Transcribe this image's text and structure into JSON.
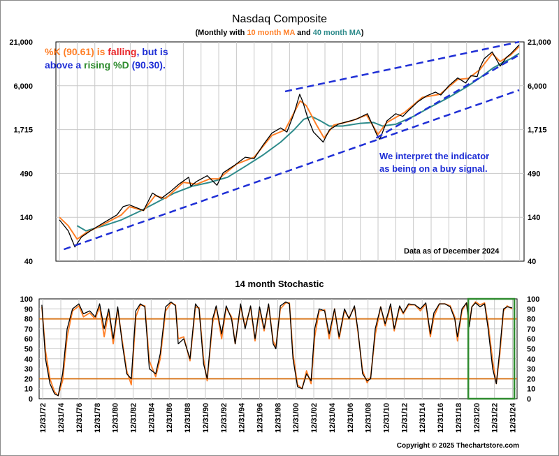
{
  "chart_data": [
    {
      "type": "line",
      "title": "Nasdaq Composite",
      "subtitle": {
        "prefix": "(Monthly with ",
        "ma1": "10 month MA",
        "mid": " and ",
        "ma2": "40 month MA",
        "suffix": ")"
      },
      "y_scale": "log",
      "ylim": [
        40,
        21000
      ],
      "y_ticks": [
        "40",
        "140",
        "490",
        "1,715",
        "6,000",
        "21,000"
      ],
      "y_tick_values": [
        40,
        140,
        490,
        1715,
        6000,
        21000
      ],
      "x_ticks": [
        "12/31/72",
        "12/31/74",
        "12/31/76",
        "12/31/78",
        "12/31/80",
        "12/31/82",
        "12/31/84",
        "12/31/86",
        "12/31/88",
        "12/31/90",
        "12/31/92",
        "12/31/94",
        "12/31/96",
        "12/31/98",
        "12/31/00",
        "12/31/02",
        "12/31/04",
        "12/31/06",
        "12/31/08",
        "12/31/10",
        "12/31/12",
        "12/31/14",
        "12/31/16",
        "12/31/18",
        "12/31/20",
        "12/31/22",
        "12/31/24"
      ],
      "xlim": [
        1972.6,
        2025.5
      ],
      "series": [
        {
          "name": "Nasdaq Composite",
          "color": "#000000",
          "x": [
            1973.0,
            1974.0,
            1974.75,
            1975.5,
            1976.5,
            1978.0,
            1979.5,
            1980.2,
            1980.9,
            1982.5,
            1983.5,
            1984.5,
            1985.5,
            1986.5,
            1987.6,
            1987.85,
            1988.5,
            1989.7,
            1990.8,
            1991.5,
            1992.8,
            1994.0,
            1995.0,
            1996.0,
            1997.0,
            1998.0,
            1998.7,
            1999.5,
            2000.15,
            2000.5,
            2001.0,
            2001.7,
            2002.8,
            2003.5,
            2004.5,
            2005.5,
            2006.5,
            2007.8,
            2008.9,
            2009.2,
            2010.0,
            2011.0,
            2011.8,
            2012.5,
            2013.5,
            2014.5,
            2015.5,
            2016.1,
            2017.0,
            2018.0,
            2018.9,
            2019.5,
            2020.2,
            2020.5,
            2021.0,
            2021.9,
            2022.8,
            2023.5,
            2024.0,
            2024.95
          ],
          "y": [
            130,
            95,
            60,
            80,
            95,
            120,
            150,
            190,
            200,
            170,
            280,
            240,
            290,
            360,
            440,
            340,
            390,
            460,
            350,
            500,
            620,
            780,
            750,
            1100,
            1550,
            1800,
            1600,
            2700,
            4700,
            3800,
            2500,
            1600,
            1200,
            1700,
            2000,
            2150,
            2300,
            2700,
            1450,
            1300,
            2200,
            2700,
            2500,
            3000,
            3800,
            4500,
            5000,
            4600,
            6000,
            7500,
            6500,
            8000,
            7800,
            10000,
            13000,
            15800,
            10500,
            13500,
            15000,
            19300
          ]
        },
        {
          "name": "10 month MA",
          "color": "#ff7f27",
          "x": [
            1973.0,
            1974.0,
            1975.0,
            1976.0,
            1978.0,
            1980.0,
            1980.9,
            1982.5,
            1983.8,
            1985.0,
            1987.0,
            1988.5,
            1990.0,
            1991.0,
            1993.0,
            1995.0,
            1997.0,
            1998.5,
            2000.2,
            2000.9,
            2002.0,
            2002.9,
            2004.0,
            2006.0,
            2007.7,
            2009.0,
            2010.0,
            2012.0,
            2014.0,
            2016.0,
            2018.0,
            2019.2,
            2020.5,
            2021.9,
            2022.8,
            2024.0,
            2024.95
          ],
          "y": [
            140,
            110,
            75,
            90,
            115,
            150,
            190,
            170,
            260,
            240,
            380,
            360,
            420,
            420,
            640,
            780,
            1450,
            1700,
            3900,
            3400,
            2000,
            1350,
            1950,
            2200,
            2600,
            1500,
            2100,
            2800,
            4300,
            4700,
            7200,
            7400,
            9500,
            15000,
            12000,
            14500,
            18400
          ]
        },
        {
          "name": "40 month MA",
          "color": "#2e8b8b",
          "x": [
            1975.0,
            1976.0,
            1978.0,
            1980.0,
            1982.0,
            1984.0,
            1986.0,
            1988.0,
            1990.0,
            1992.0,
            1994.0,
            1996.0,
            1998.0,
            1999.5,
            2000.6,
            2001.5,
            2002.5,
            2003.5,
            2005.0,
            2007.0,
            2008.5,
            2009.5,
            2011.0,
            2013.0,
            2015.0,
            2017.0,
            2019.0,
            2020.5,
            2022.0,
            2023.0,
            2024.0,
            2024.95
          ],
          "y": [
            110,
            95,
            110,
            130,
            165,
            215,
            280,
            340,
            380,
            440,
            600,
            830,
            1200,
            1700,
            2300,
            2500,
            2200,
            1900,
            1900,
            2050,
            2100,
            1900,
            2000,
            2500,
            3300,
            4300,
            5800,
            7500,
            10000,
            11500,
            13000,
            15100
          ]
        }
      ],
      "trendlines": [
        {
          "color": "#1f2fd6",
          "x": [
            1973.5,
            2024.95
          ],
          "y": [
            56,
            5300
          ]
        },
        {
          "color": "#1f2fd6",
          "x": [
            1998.5,
            2024.95
          ],
          "y": [
            5100,
            21000
          ]
        },
        {
          "color": "#1f2fd6",
          "x": [
            2008.8,
            2024.95
          ],
          "y": [
            1350,
            14500
          ]
        }
      ],
      "annotations": {
        "k_prefix": "%K (90.61) is ",
        "k_falling": "falling",
        "k_mid": ", but is",
        "line2_a": "above a ",
        "rising": "rising",
        "d_text": "%D",
        "d_value": " (90.30).",
        "interpret_1": "We interpret the indicator",
        "interpret_2": "as being on a buy signal.",
        "data_as_of": "Data as of December 2024"
      },
      "grid": true
    },
    {
      "type": "line",
      "title": "14 month Stochastic",
      "ylim": [
        0,
        100
      ],
      "y_ticks": [
        "0",
        "10",
        "20",
        "30",
        "40",
        "50",
        "60",
        "70",
        "80",
        "90",
        "100"
      ],
      "y_tick_values": [
        0,
        10,
        20,
        30,
        40,
        50,
        60,
        70,
        80,
        90,
        100
      ],
      "reference_lines": [
        {
          "y": 80,
          "color": "#d97a22"
        },
        {
          "y": 20,
          "color": "#d97a22"
        }
      ],
      "series": [
        {
          "name": "%K",
          "color": "#000000",
          "x": [
            1972.9,
            1973.3,
            1973.8,
            1974.3,
            1974.7,
            1975.2,
            1975.7,
            1976.3,
            1977.0,
            1977.5,
            1978.2,
            1978.8,
            1979.3,
            1979.8,
            1980.3,
            1980.8,
            1981.3,
            1981.8,
            1982.3,
            1982.8,
            1983.3,
            1983.8,
            1984.3,
            1984.8,
            1985.5,
            1986.0,
            1986.6,
            1987.2,
            1987.7,
            1988.0,
            1988.6,
            1989.3,
            1989.9,
            1990.3,
            1990.8,
            1991.2,
            1991.8,
            1992.2,
            1992.8,
            1993.3,
            1993.9,
            1994.3,
            1994.9,
            1995.4,
            1996.0,
            1996.5,
            1997.0,
            1997.5,
            1998.0,
            1998.5,
            1998.8,
            1999.3,
            1999.9,
            2000.3,
            2000.7,
            2001.2,
            2001.7,
            2002.2,
            2002.7,
            2003.1,
            2003.6,
            2004.2,
            2004.7,
            2005.3,
            2005.8,
            2006.4,
            2006.9,
            2007.5,
            2007.9,
            2008.4,
            2008.9,
            2009.3,
            2009.8,
            2010.4,
            2010.9,
            2011.5,
            2011.9,
            2012.5,
            2012.9,
            2013.5,
            2014.2,
            2014.8,
            2015.4,
            2015.9,
            2016.3,
            2016.9,
            2017.5,
            2018.1,
            2018.6,
            2018.9,
            2019.4,
            2019.9,
            2020.2,
            2020.5,
            2020.9,
            2021.4,
            2021.9,
            2022.3,
            2022.8,
            2023.2,
            2023.6,
            2024.0,
            2024.4,
            2024.95
          ],
          "y": [
            94,
            40,
            15,
            5,
            3,
            25,
            70,
            90,
            95,
            85,
            88,
            82,
            95,
            70,
            90,
            60,
            92,
            55,
            25,
            20,
            88,
            95,
            92,
            30,
            25,
            45,
            92,
            97,
            93,
            55,
            60,
            40,
            95,
            90,
            35,
            20,
            80,
            93,
            65,
            93,
            80,
            55,
            95,
            70,
            93,
            60,
            92,
            70,
            95,
            55,
            50,
            93,
            97,
            95,
            40,
            12,
            10,
            25,
            18,
            70,
            90,
            88,
            65,
            90,
            62,
            90,
            80,
            93,
            68,
            25,
            18,
            20,
            70,
            92,
            75,
            95,
            70,
            93,
            86,
            95,
            94,
            90,
            96,
            65,
            86,
            95,
            95,
            92,
            80,
            62,
            90,
            96,
            72,
            92,
            96,
            92,
            95,
            70,
            30,
            15,
            50,
            90,
            92,
            91
          ]
        },
        {
          "name": "%D",
          "color": "#ff7f27",
          "x": [
            1972.9,
            1973.3,
            1973.8,
            1974.3,
            1974.7,
            1975.2,
            1975.7,
            1976.3,
            1977.0,
            1977.5,
            1978.2,
            1978.8,
            1979.3,
            1979.8,
            1980.3,
            1980.8,
            1981.3,
            1981.8,
            1982.3,
            1982.8,
            1983.3,
            1983.8,
            1984.3,
            1984.8,
            1985.5,
            1986.0,
            1986.6,
            1987.2,
            1987.7,
            1988.0,
            1988.6,
            1989.3,
            1989.9,
            1990.3,
            1990.8,
            1991.2,
            1991.8,
            1992.2,
            1992.8,
            1993.3,
            1993.9,
            1994.3,
            1994.9,
            1995.4,
            1996.0,
            1996.5,
            1997.0,
            1997.5,
            1998.0,
            1998.5,
            1998.8,
            1999.3,
            1999.9,
            2000.3,
            2000.7,
            2001.2,
            2001.7,
            2002.2,
            2002.7,
            2003.1,
            2003.6,
            2004.2,
            2004.7,
            2005.3,
            2005.8,
            2006.4,
            2006.9,
            2007.5,
            2007.9,
            2008.4,
            2008.9,
            2009.3,
            2009.8,
            2010.4,
            2010.9,
            2011.5,
            2011.9,
            2012.5,
            2012.9,
            2013.5,
            2014.2,
            2014.8,
            2015.4,
            2015.9,
            2016.3,
            2016.9,
            2017.5,
            2018.1,
            2018.6,
            2018.9,
            2019.4,
            2019.9,
            2020.2,
            2020.5,
            2020.9,
            2021.4,
            2021.9,
            2022.3,
            2022.8,
            2023.2,
            2023.6,
            2024.0,
            2024.4,
            2024.95
          ],
          "y": [
            92,
            48,
            20,
            7,
            3,
            18,
            62,
            88,
            93,
            82,
            86,
            80,
            92,
            62,
            88,
            55,
            90,
            58,
            28,
            14,
            82,
            94,
            93,
            38,
            22,
            40,
            88,
            96,
            94,
            60,
            62,
            38,
            92,
            91,
            40,
            18,
            76,
            92,
            60,
            91,
            82,
            55,
            93,
            72,
            92,
            58,
            90,
            68,
            94,
            58,
            52,
            90,
            96,
            96,
            45,
            14,
            10,
            28,
            15,
            62,
            88,
            89,
            60,
            90,
            60,
            88,
            81,
            92,
            66,
            28,
            16,
            22,
            64,
            92,
            73,
            93,
            68,
            92,
            85,
            94,
            94,
            88,
            95,
            62,
            82,
            95,
            95,
            93,
            82,
            58,
            88,
            96,
            74,
            92,
            97,
            94,
            96,
            75,
            38,
            15,
            45,
            88,
            93,
            90
          ]
        }
      ],
      "highlight_box": {
        "x": [
          2020.1,
          2025.2
        ],
        "y": [
          0,
          100
        ],
        "color": "#2e8b2e"
      },
      "grid": true
    }
  ],
  "copyright": "Copyright © 2025 Thechartstore.com"
}
